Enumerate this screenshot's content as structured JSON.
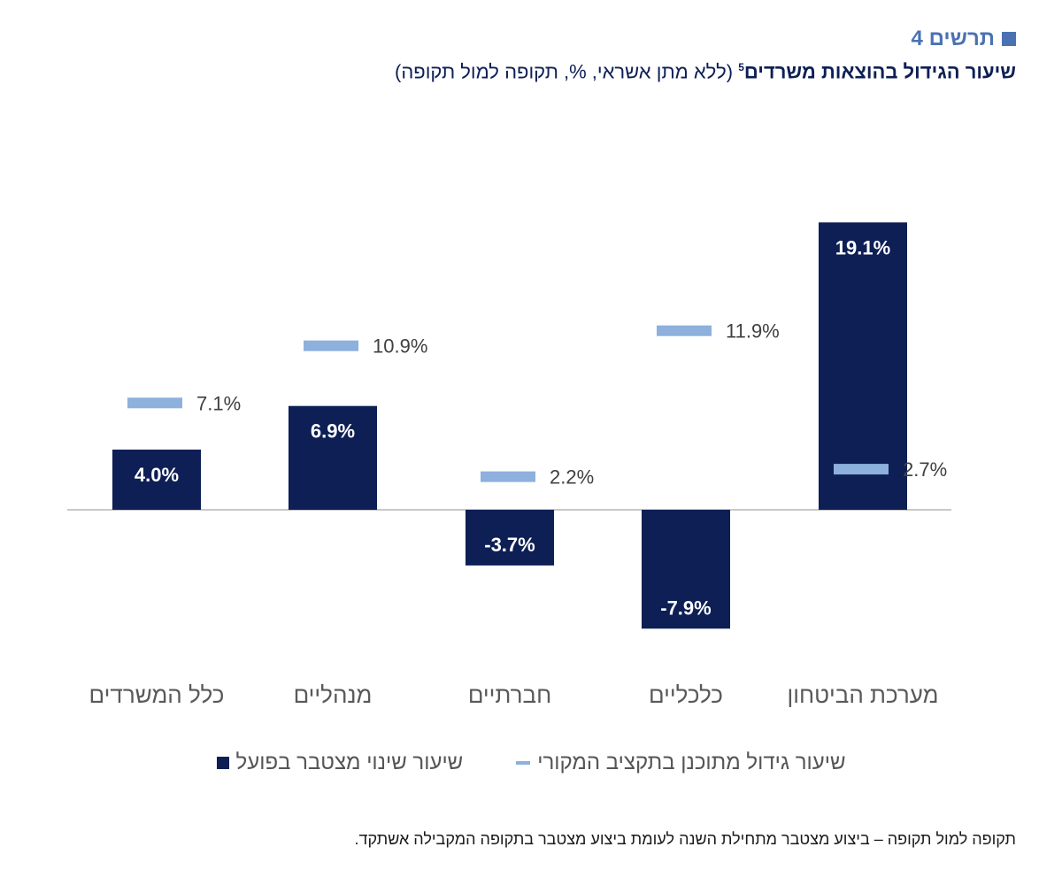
{
  "header": {
    "fig_label": "תרשים 4",
    "title_main": "שיעור הגידול בהוצאות משרדים",
    "title_sup": "5",
    "title_sub": " (ללא מתן אשראי, %, תקופה למול תקופה)"
  },
  "colors": {
    "actual": "#0d1f55",
    "planned": "#8db0dd",
    "accent": "#4a72b3"
  },
  "chart_data": {
    "type": "bar",
    "categories": [
      "מערכת הביטחון",
      "כלכליים",
      "חברתיים",
      "מנהליים",
      "כלל המשרדים"
    ],
    "series": [
      {
        "name": "שיעור שינוי מצטבר בפועל",
        "mark": "bar",
        "values": [
          19.1,
          -7.9,
          -3.7,
          6.9,
          4.0
        ],
        "labels": [
          "19.1%",
          "-7.9%",
          "-3.7%",
          "6.9%",
          "4.0%"
        ]
      },
      {
        "name": "שיעור גידול מתוכנן בתקציב המקורי",
        "mark": "dash",
        "values": [
          2.7,
          11.9,
          2.2,
          10.9,
          7.1
        ],
        "labels": [
          "2.7%",
          "11.9%",
          "2.2%",
          "10.9%",
          "7.1%"
        ]
      }
    ],
    "category_order": "right-to-left",
    "ylim": [
      -10,
      20
    ],
    "grid": false,
    "legend_position": "bottom"
  },
  "legend": {
    "actual_label": "שיעור שינוי מצטבר בפועל",
    "planned_label": "שיעור גידול מתוכנן בתקציב המקורי"
  },
  "footnote": "תקופה למול תקופה – ביצוע מצטבר מתחילת השנה לעומת ביצוע מצטבר בתקופה המקבילה אשתקד."
}
